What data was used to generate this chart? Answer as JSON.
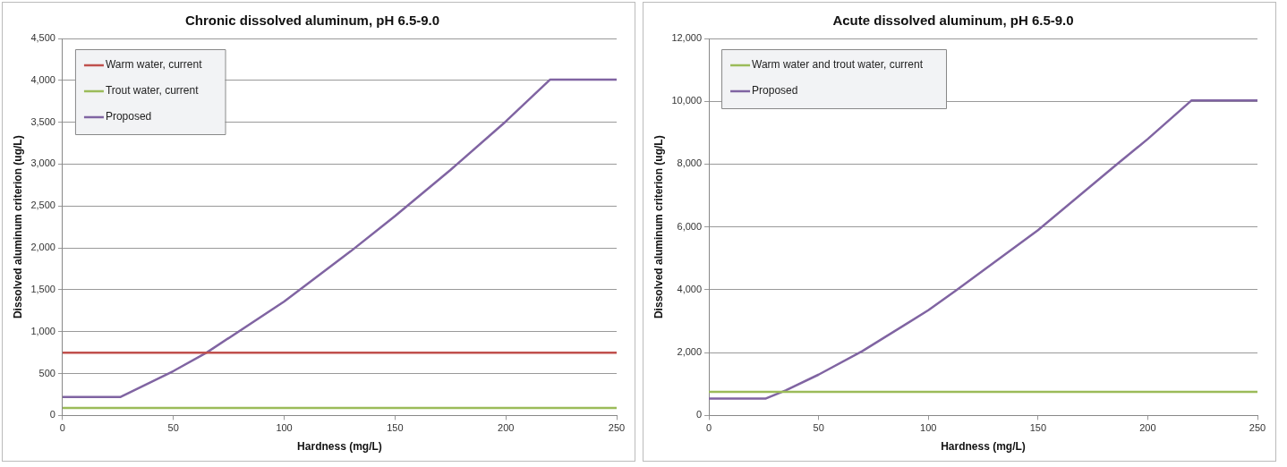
{
  "chart_data": [
    {
      "type": "line",
      "title": "Chronic dissolved aluminum, pH 6.5-9.0",
      "xlabel": "Hardness (mg/L)",
      "ylabel": "Dissolved aluminum criterion (ug/L)",
      "xlim": [
        0,
        250
      ],
      "xticks": [
        {
          "value": 0,
          "label": "0"
        },
        50,
        100,
        150,
        200,
        250
      ],
      "ylim": [
        0,
        4500
      ],
      "yticks": [
        {
          "value": 0,
          "label": "0"
        },
        500,
        {
          "value": 1000,
          "label": "1,000"
        },
        {
          "value": 1500,
          "label": "1,500"
        },
        {
          "value": 2000,
          "label": "2,000"
        },
        {
          "value": 2500,
          "label": "2,500"
        },
        {
          "value": 3000,
          "label": "3,000"
        },
        {
          "value": 3500,
          "label": "3,500"
        },
        {
          "value": 4000,
          "label": "4,000"
        },
        {
          "value": 4500,
          "label": "4,500"
        }
      ],
      "grid": "y",
      "legend": "top left",
      "marker": "none",
      "line_style": "solid",
      "series": [
        {
          "name": "Warm water, current",
          "color": "#c0504d",
          "x": [
            0,
            250
          ],
          "values": [
            750,
            750
          ]
        },
        {
          "name": "Trout water, current",
          "color": "#9bbb59",
          "x": [
            0,
            250
          ],
          "values": [
            90,
            90
          ]
        },
        {
          "name": "Proposed",
          "color": "#8064a2",
          "x": [
            0,
            26,
            50,
            65,
            100,
            130,
            150,
            175,
            200,
            220,
            250
          ],
          "values": [
            220,
            220,
            530,
            750,
            1360,
            1960,
            2380,
            2930,
            3510,
            4010,
            4010
          ]
        }
      ]
    },
    {
      "type": "line",
      "title": "Acute dissolved aluminum, pH 6.5-9.0",
      "xlabel": "Hardness (mg/L)",
      "ylabel": "Dissolved aluminum criterion (ug/L)",
      "xlim": [
        0,
        250
      ],
      "xticks": [
        {
          "value": 0,
          "label": "0"
        },
        50,
        100,
        150,
        200,
        250
      ],
      "ylim": [
        0,
        12000
      ],
      "yticks": [
        {
          "value": 0,
          "label": "0"
        },
        {
          "value": 2000,
          "label": "2,000"
        },
        {
          "value": 4000,
          "label": "4,000"
        },
        {
          "value": 6000,
          "label": "6,000"
        },
        {
          "value": 8000,
          "label": "8,000"
        },
        {
          "value": 10000,
          "label": "10,000"
        },
        {
          "value": 12000,
          "label": "12,000"
        }
      ],
      "grid": "y",
      "legend": "top left",
      "marker": "none",
      "line_style": "solid",
      "series": [
        {
          "name": "Warm water and trout water, current",
          "color": "#9bbb59",
          "x": [
            0,
            250
          ],
          "values": [
            750,
            750
          ]
        },
        {
          "name": "Proposed",
          "color": "#8064a2",
          "x": [
            0,
            26,
            35,
            50,
            70,
            100,
            113,
            150,
            186,
            200,
            220,
            250
          ],
          "values": [
            540,
            540,
            800,
            1300,
            2050,
            3350,
            4000,
            5900,
            8000,
            8800,
            10030,
            10030
          ]
        }
      ]
    }
  ]
}
